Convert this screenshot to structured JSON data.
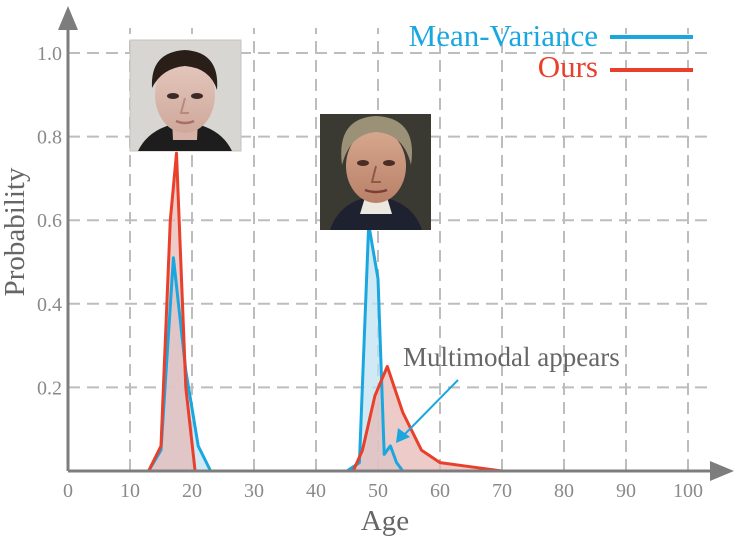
{
  "chart_data": {
    "type": "area",
    "xlabel": "Age",
    "ylabel": "Probability",
    "xlim": [
      0,
      100
    ],
    "ylim": [
      0,
      1.0
    ],
    "x_ticks": [
      "0",
      "10",
      "20",
      "30",
      "40",
      "50",
      "60",
      "70",
      "80",
      "90",
      "100"
    ],
    "y_ticks": [
      "0.2",
      "0.4",
      "0.6",
      "0.8",
      "1.0"
    ],
    "grid": true,
    "legend_position": "top-right",
    "series": [
      {
        "name": "Mean-Variance",
        "color": "#1aa7e0",
        "fill": "#bfe3f2",
        "points": [
          [
            0,
            0.0
          ],
          [
            13,
            0.0
          ],
          [
            15,
            0.05
          ],
          [
            17,
            0.51
          ],
          [
            19,
            0.24
          ],
          [
            21,
            0.06
          ],
          [
            23,
            0.0
          ],
          [
            45,
            0.0
          ],
          [
            47,
            0.02
          ],
          [
            48.5,
            0.59
          ],
          [
            50,
            0.46
          ],
          [
            51,
            0.04
          ],
          [
            52,
            0.06
          ],
          [
            53,
            0.02
          ],
          [
            54,
            0.0
          ],
          [
            100,
            0.0
          ]
        ]
      },
      {
        "name": "Ours",
        "color": "#e8402a",
        "fill": "#e7b9b7",
        "points": [
          [
            0,
            0.0
          ],
          [
            13,
            0.0
          ],
          [
            15,
            0.06
          ],
          [
            16.5,
            0.6
          ],
          [
            17.5,
            0.76
          ],
          [
            19,
            0.2
          ],
          [
            20.5,
            0.0
          ],
          [
            46,
            0.0
          ],
          [
            47.5,
            0.05
          ],
          [
            49.5,
            0.18
          ],
          [
            51.5,
            0.25
          ],
          [
            54,
            0.14
          ],
          [
            57,
            0.05
          ],
          [
            60,
            0.02
          ],
          [
            65,
            0.01
          ],
          [
            70,
            0.0
          ],
          [
            100,
            0.0
          ]
        ]
      }
    ],
    "annotations": [
      {
        "text": "Multimodal appears",
        "target": [
          52,
          0.07
        ]
      }
    ]
  },
  "legend": {
    "items": [
      {
        "label": "Mean-Variance",
        "color": "#1aa7e0"
      },
      {
        "label": "Ours",
        "color": "#e8402a"
      }
    ]
  },
  "annotation_text": "Multimodal appears",
  "images": [
    {
      "name": "young-face-photo"
    },
    {
      "name": "older-face-photo"
    }
  ]
}
